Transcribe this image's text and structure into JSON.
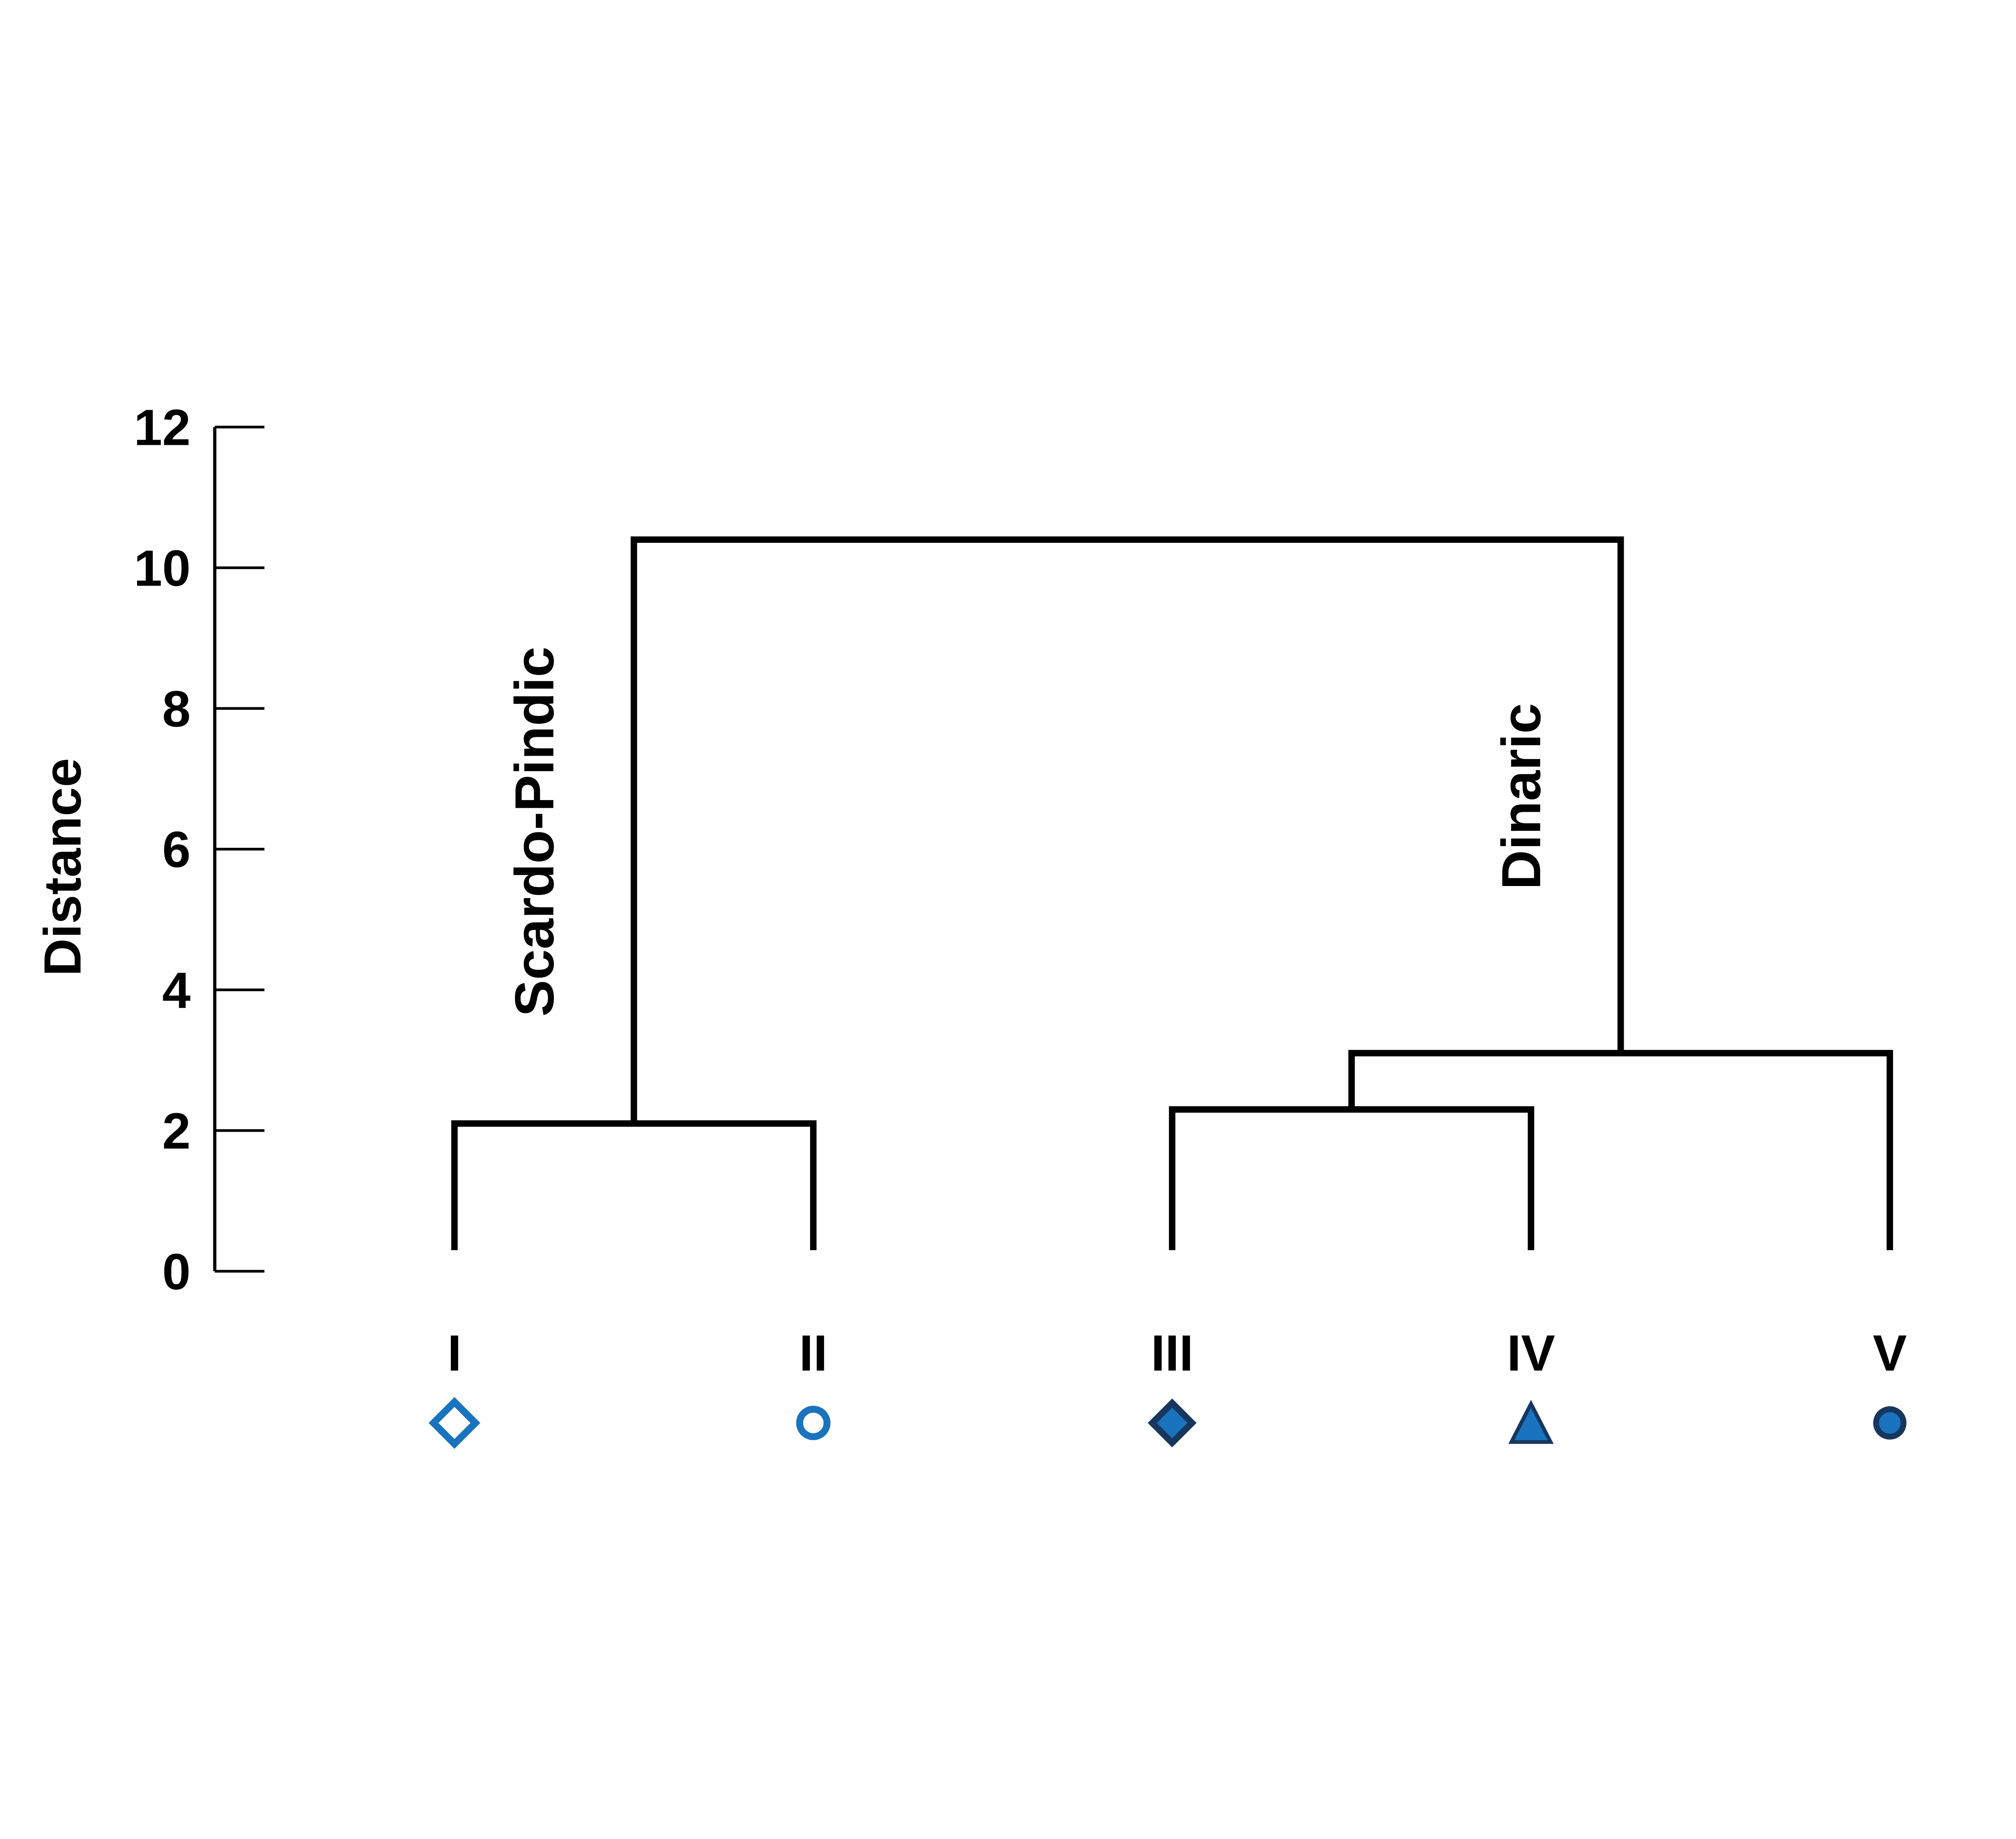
{
  "chart_data": {
    "type": "dendrogram",
    "title": "",
    "ylabel": "Distance",
    "yticks": [
      0,
      2,
      4,
      6,
      8,
      10,
      12
    ],
    "ylim": [
      0,
      12
    ],
    "grid": false,
    "leaves": [
      {
        "id": "I",
        "marker": "open-diamond"
      },
      {
        "id": "II",
        "marker": "open-circle"
      },
      {
        "id": "III",
        "marker": "filled-diamond"
      },
      {
        "id": "IV",
        "marker": "filled-triangle"
      },
      {
        "id": "V",
        "marker": "filled-circle"
      }
    ],
    "merges": [
      {
        "left": "I",
        "right": "II",
        "height": 2.1,
        "cluster_label": "Scardo-Pindic"
      },
      {
        "left": "III",
        "right": "IV",
        "height": 2.3
      },
      {
        "left": "m1",
        "right": "V",
        "height": 3.1,
        "cluster_label": "Dinaric"
      },
      {
        "left": "m0",
        "right": "m2",
        "height": 10.4
      }
    ],
    "leaf_stub_top": 0.3,
    "colors": {
      "line": "#000000",
      "marker_blue": "#1a73be",
      "marker_navy": "#17375e"
    }
  }
}
